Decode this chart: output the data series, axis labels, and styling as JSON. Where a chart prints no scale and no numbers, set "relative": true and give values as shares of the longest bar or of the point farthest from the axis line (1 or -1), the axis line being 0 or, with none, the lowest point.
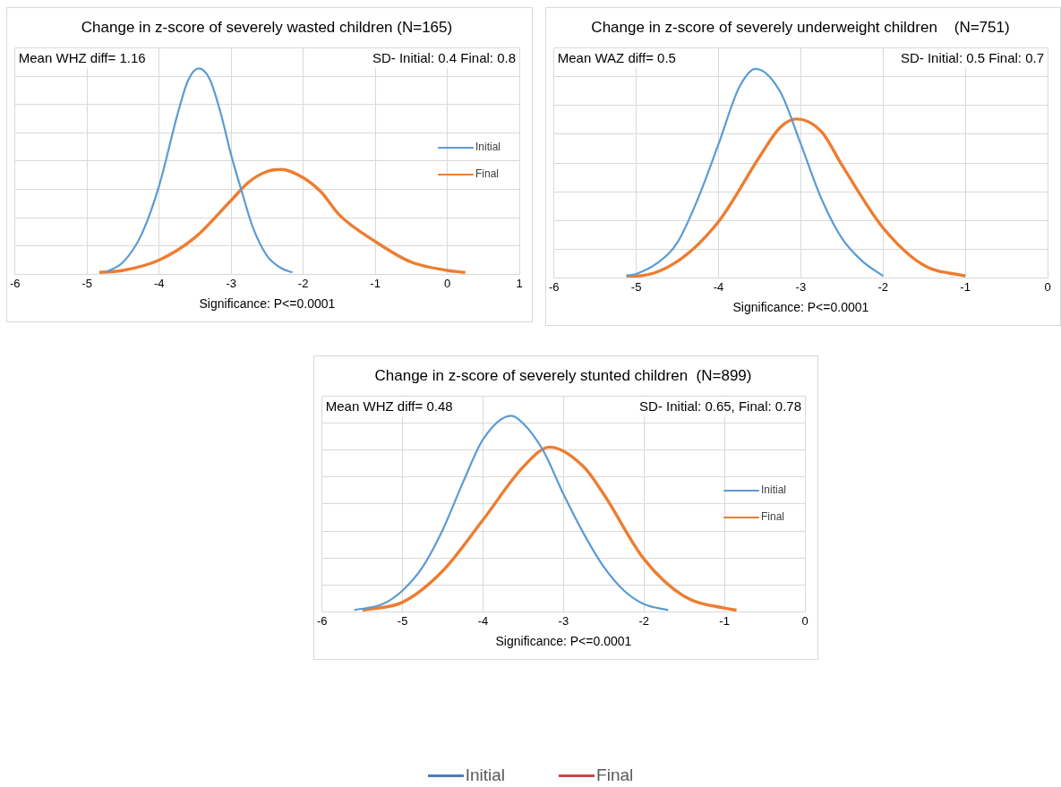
{
  "chart_data": [
    {
      "type": "line",
      "title": "Change in z-score of severely wasted children (N=165)",
      "xlabel": "Significance: P<=0.0001",
      "relative": true,
      "xlim": [
        -6,
        1
      ],
      "xticks": [
        -6,
        -5,
        -4,
        -3,
        -2,
        -1,
        0,
        1
      ],
      "grid": true,
      "legend": "right",
      "annotations": [
        "Mean WHZ diff= 1.16",
        "SD- Initial: 0.4 Final: 0.8"
      ],
      "series": [
        {
          "name": "Initial",
          "color": "#5b9bd5",
          "x": [
            -4.75,
            -4.5,
            -4.25,
            -4.0,
            -3.75,
            -3.6,
            -3.45,
            -3.3,
            -3.15,
            -3.0,
            -2.85,
            -2.7,
            -2.5,
            -2.3,
            -2.15
          ],
          "values": [
            0.01,
            0.06,
            0.19,
            0.43,
            0.77,
            0.94,
            1.0,
            0.95,
            0.79,
            0.58,
            0.4,
            0.23,
            0.09,
            0.03,
            0.01
          ]
        },
        {
          "name": "Final",
          "color": "#ed7d31",
          "x": [
            -4.83,
            -4.5,
            -4.0,
            -3.5,
            -3.0,
            -2.75,
            -2.5,
            -2.31,
            -2.0,
            -1.75,
            -1.5,
            -1.0,
            -0.5,
            0,
            0.25
          ],
          "values": [
            0.01,
            0.02,
            0.07,
            0.18,
            0.36,
            0.45,
            0.5,
            0.51,
            0.47,
            0.4,
            0.29,
            0.16,
            0.06,
            0.02,
            0.01
          ]
        }
      ]
    },
    {
      "type": "line",
      "title": "Change in z-score of severely underweight children    (N=751)",
      "xlabel": "Significance: P<=0.0001",
      "relative": true,
      "xlim": [
        -6,
        0
      ],
      "xticks": [
        -6,
        -5,
        -4,
        -3,
        -2,
        -1,
        0
      ],
      "grid": true,
      "annotations": [
        "Mean WAZ diff= 0.5",
        "SD- Initial: 0.5 Final: 0.7"
      ],
      "series": [
        {
          "color": "#5b9bd5",
          "x": [
            -5.12,
            -5.0,
            -4.75,
            -4.5,
            -4.25,
            -4.0,
            -3.75,
            -3.55,
            -3.25,
            -3.0,
            -2.75,
            -2.5,
            -2.25,
            -2.0
          ],
          "values": [
            0.01,
            0.02,
            0.07,
            0.17,
            0.38,
            0.64,
            0.91,
            1.0,
            0.89,
            0.64,
            0.38,
            0.19,
            0.08,
            0.01
          ]
        },
        {
          "color": "#ed7d31",
          "x": [
            -5.12,
            -5.0,
            -4.5,
            -4.0,
            -3.5,
            -3.25,
            -3.05,
            -2.75,
            -2.5,
            -2.0,
            -1.5,
            -1.0
          ],
          "values": [
            0.01,
            0.01,
            0.08,
            0.27,
            0.58,
            0.72,
            0.76,
            0.7,
            0.54,
            0.24,
            0.06,
            0.01
          ]
        }
      ]
    },
    {
      "type": "line",
      "title": "Change in z-score of severely stunted children  (N=899)",
      "xlabel": "Significance: P<=0.0001",
      "relative": true,
      "xlim": [
        -6,
        0
      ],
      "xticks": [
        -6,
        -5,
        -4,
        -3,
        -2,
        -1,
        0
      ],
      "grid": true,
      "legend": "right",
      "annotations": [
        "Mean WHZ diff= 0.48",
        "SD- Initial: 0.65, Final: 0.78"
      ],
      "series": [
        {
          "name": "Initial",
          "color": "#5b9bd5",
          "x": [
            -5.6,
            -5.25,
            -5.0,
            -4.75,
            -4.5,
            -4.25,
            -4.0,
            -3.65,
            -3.5,
            -3.25,
            -3.0,
            -2.75,
            -2.5,
            -2.25,
            -2.0,
            -1.7
          ],
          "values": [
            0.01,
            0.04,
            0.11,
            0.23,
            0.42,
            0.66,
            0.88,
            1.0,
            0.96,
            0.82,
            0.6,
            0.4,
            0.23,
            0.11,
            0.04,
            0.01
          ]
        },
        {
          "name": "Final",
          "color": "#ed7d31",
          "x": [
            -5.5,
            -5.0,
            -4.5,
            -4.0,
            -3.5,
            -3.17,
            -2.75,
            -2.5,
            -2.0,
            -1.5,
            -1.0,
            -0.85
          ],
          "values": [
            0.01,
            0.05,
            0.21,
            0.47,
            0.74,
            0.84,
            0.74,
            0.6,
            0.27,
            0.08,
            0.02,
            0.01
          ]
        }
      ]
    },
    {
      "type": "other",
      "categories": [
        "Initial",
        "Final"
      ],
      "colors": [
        "#4a7ebb",
        "#be4b48"
      ]
    }
  ]
}
